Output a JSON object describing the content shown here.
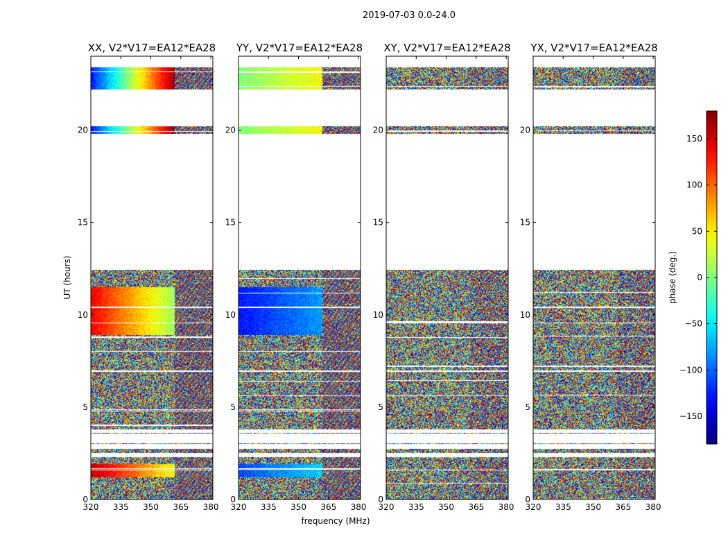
{
  "figure": {
    "suptitle": "2019-07-03 0.0-24.0"
  },
  "chart_data": {
    "type": "heatmap",
    "title": "2019-07-03 0.0-24.0",
    "xlabel": "frequency (MHz)",
    "ylabel": "UT (hours)",
    "xlim": [
      320,
      381
    ],
    "ylim": [
      0,
      24
    ],
    "x_ticks": [
      320,
      335,
      350,
      365,
      380
    ],
    "y_ticks": [
      0,
      5,
      10,
      15,
      20
    ],
    "panels": [
      {
        "name": "XX, V2*V17=EA12*EA28",
        "title": "XX, V2*V17=EA12*EA28",
        "mode": "XX"
      },
      {
        "name": "YY, V2*V17=EA12*EA28",
        "title": "YY, V2*V17=EA12*EA28",
        "mode": "YY"
      },
      {
        "name": "XY, V2*V17=EA12*EA28",
        "title": "XY, V2*V17=EA12*EA28",
        "mode": "noise"
      },
      {
        "name": "YX, V2*V17=EA12*EA28",
        "title": "YX, V2*V17=EA12*EA28",
        "mode": "noise"
      }
    ],
    "data_time_ranges_hours": [
      [
        0.0,
        2.3
      ],
      [
        2.5,
        2.75
      ],
      [
        3.0,
        3.05
      ],
      [
        3.55,
        3.62
      ],
      [
        3.8,
        6.9
      ],
      [
        7.0,
        12.45
      ],
      [
        19.8,
        20.2
      ],
      [
        22.2,
        23.4
      ]
    ],
    "approx_phase_features": [
      {
        "panel": "XX",
        "ut_range": [
          8.9,
          11.5
        ],
        "freq_range": [
          320,
          362
        ],
        "phase_deg_start": 140,
        "phase_deg_end": 10
      },
      {
        "panel": "XX",
        "ut_range": [
          22.2,
          23.4
        ],
        "freq_range": [
          320,
          362
        ],
        "phase_deg_start": -130,
        "phase_deg_end": 170
      },
      {
        "panel": "XX",
        "ut_range": [
          19.8,
          20.2
        ],
        "freq_range": [
          320,
          362
        ],
        "phase_deg_start": -130,
        "phase_deg_end": 170
      },
      {
        "panel": "XX",
        "ut_range": [
          1.2,
          1.9
        ],
        "freq_range": [
          320,
          362
        ],
        "phase_deg_start": 160,
        "phase_deg_end": 40
      },
      {
        "panel": "YY",
        "ut_range": [
          8.9,
          11.5
        ],
        "freq_range": [
          320,
          362
        ],
        "phase_deg_start": -130,
        "phase_deg_end": -80
      },
      {
        "panel": "YY",
        "ut_range": [
          22.2,
          23.4
        ],
        "freq_range": [
          320,
          362
        ],
        "phase_deg_start": 0,
        "phase_deg_end": 45
      },
      {
        "panel": "YY",
        "ut_range": [
          19.8,
          20.2
        ],
        "freq_range": [
          320,
          362
        ],
        "phase_deg_start": 0,
        "phase_deg_end": 45
      },
      {
        "panel": "YY",
        "ut_range": [
          1.2,
          1.9
        ],
        "freq_range": [
          320,
          362
        ],
        "phase_deg_start": -110,
        "phase_deg_end": -60
      }
    ],
    "colorbar": {
      "label": "phase (deg.)",
      "range": [
        -180,
        180
      ],
      "ticks": [
        -150,
        -100,
        -50,
        0,
        50,
        100,
        150
      ],
      "tick_labels": [
        "−150",
        "−100",
        "−50",
        "0",
        "50",
        "100",
        "150"
      ],
      "colormap": "jet"
    }
  }
}
